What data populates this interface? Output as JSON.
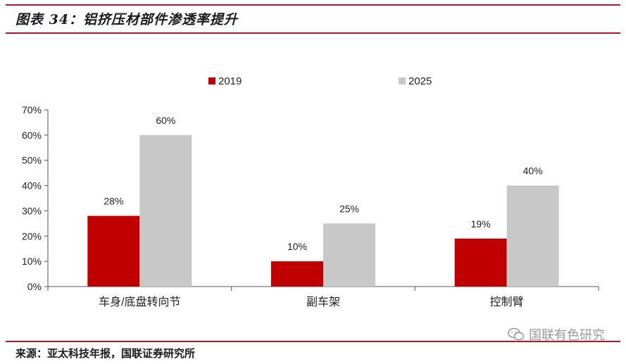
{
  "header": {
    "title": "图表 34：铝挤压材部件渗透率提升"
  },
  "footer": {
    "source": "来源：亚太科技年报，国联证券研究所"
  },
  "watermark": {
    "text": "国联有色研究",
    "icon": "wechat-icon"
  },
  "colors": {
    "accent": "#a8192e",
    "series_2019": "#c00000",
    "series_2025": "#c8c8c8"
  },
  "chart_data": {
    "type": "bar",
    "categories": [
      "车身/底盘转向节",
      "副车架",
      "控制臂"
    ],
    "series": [
      {
        "name": "2019",
        "values": [
          28,
          10,
          19
        ],
        "labels": [
          "28%",
          "10%",
          "19%"
        ]
      },
      {
        "name": "2025",
        "values": [
          60,
          25,
          40
        ],
        "labels": [
          "60%",
          "25%",
          "40%"
        ]
      }
    ],
    "ylim": [
      0,
      70
    ],
    "yticks": [
      "0%",
      "10%",
      "20%",
      "30%",
      "40%",
      "50%",
      "60%",
      "70%"
    ],
    "legend_position": "top",
    "grid": false
  }
}
